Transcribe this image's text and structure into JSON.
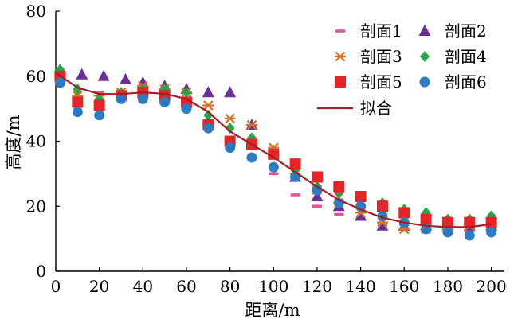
{
  "chart_data": {
    "type": "scatter",
    "title": "",
    "xlabel": "距离/m",
    "ylabel": "高度/m",
    "xlim": [
      0,
      206
    ],
    "ylim": [
      0,
      80
    ],
    "xticks": [
      0,
      20,
      40,
      60,
      80,
      100,
      120,
      140,
      160,
      180,
      200
    ],
    "yticks": [
      0,
      20,
      40,
      60,
      80
    ],
    "grid": false,
    "legend_position": "top-right",
    "series": [
      {
        "name": "剖面1",
        "marker": "dash",
        "color": "#e0559a",
        "points": [
          [
            2,
            61
          ],
          [
            10,
            53
          ],
          [
            20,
            55
          ],
          [
            30,
            54
          ],
          [
            40,
            54
          ],
          [
            50,
            53
          ],
          [
            60,
            52
          ],
          [
            70,
            45
          ],
          [
            80,
            39
          ],
          [
            90,
            38
          ],
          [
            100,
            30
          ],
          [
            110,
            23.5
          ],
          [
            120,
            20
          ],
          [
            130,
            17.5
          ],
          [
            140,
            16
          ],
          [
            150,
            14
          ],
          [
            160,
            13
          ],
          [
            170,
            12.5
          ],
          [
            180,
            12
          ],
          [
            190,
            12.5
          ],
          [
            200,
            12
          ]
        ]
      },
      {
        "name": "剖面2",
        "marker": "triangle",
        "color": "#6a2f98",
        "points": [
          [
            2,
            62
          ],
          [
            12,
            60.5
          ],
          [
            22,
            60
          ],
          [
            32,
            59
          ],
          [
            40,
            58
          ],
          [
            50,
            57
          ],
          [
            60,
            56
          ],
          [
            70,
            55
          ],
          [
            80,
            55
          ],
          [
            90,
            45
          ],
          [
            100,
            37
          ],
          [
            110,
            29
          ],
          [
            120,
            23
          ],
          [
            130,
            20
          ],
          [
            140,
            17
          ],
          [
            150,
            14
          ],
          [
            160,
            14
          ],
          [
            170,
            14
          ],
          [
            180,
            14
          ],
          [
            190,
            14
          ],
          [
            200,
            14
          ]
        ]
      },
      {
        "name": "剖面3",
        "marker": "asterisk",
        "color": "#d2742b",
        "points": [
          [
            2,
            60
          ],
          [
            10,
            54
          ],
          [
            20,
            54
          ],
          [
            30,
            55
          ],
          [
            40,
            57
          ],
          [
            50,
            56
          ],
          [
            60,
            55
          ],
          [
            70,
            51
          ],
          [
            80,
            47
          ],
          [
            90,
            45
          ],
          [
            100,
            38
          ],
          [
            110,
            30
          ],
          [
            120,
            25
          ],
          [
            130,
            21
          ],
          [
            140,
            18
          ],
          [
            150,
            15
          ],
          [
            160,
            13
          ],
          [
            170,
            13
          ],
          [
            180,
            13
          ],
          [
            190,
            14
          ],
          [
            200,
            14
          ]
        ]
      },
      {
        "name": "剖面4",
        "marker": "diamond",
        "color": "#27a54a",
        "points": [
          [
            2,
            62
          ],
          [
            10,
            56
          ],
          [
            20,
            53
          ],
          [
            30,
            55
          ],
          [
            40,
            56
          ],
          [
            50,
            56
          ],
          [
            60,
            55
          ],
          [
            70,
            48
          ],
          [
            80,
            44
          ],
          [
            90,
            41
          ],
          [
            100,
            36
          ],
          [
            110,
            31
          ],
          [
            120,
            26
          ],
          [
            130,
            24
          ],
          [
            140,
            23
          ],
          [
            150,
            21
          ],
          [
            160,
            19
          ],
          [
            170,
            18
          ],
          [
            180,
            16
          ],
          [
            190,
            16
          ],
          [
            200,
            17
          ]
        ]
      },
      {
        "name": "剖面5",
        "marker": "square",
        "color": "#e52427",
        "points": [
          [
            2,
            60
          ],
          [
            10,
            52
          ],
          [
            20,
            51
          ],
          [
            30,
            54
          ],
          [
            40,
            55
          ],
          [
            50,
            54
          ],
          [
            60,
            52
          ],
          [
            70,
            45
          ],
          [
            80,
            40
          ],
          [
            90,
            39
          ],
          [
            100,
            36
          ],
          [
            110,
            33
          ],
          [
            120,
            29
          ],
          [
            130,
            26
          ],
          [
            140,
            23
          ],
          [
            150,
            20
          ],
          [
            160,
            18
          ],
          [
            170,
            16
          ],
          [
            180,
            15
          ],
          [
            190,
            15
          ],
          [
            200,
            15
          ]
        ]
      },
      {
        "name": "剖面6",
        "marker": "circle",
        "color": "#2b7cc4",
        "points": [
          [
            2,
            58
          ],
          [
            10,
            49
          ],
          [
            20,
            48
          ],
          [
            30,
            53
          ],
          [
            40,
            53
          ],
          [
            50,
            52
          ],
          [
            60,
            50
          ],
          [
            70,
            44
          ],
          [
            80,
            38
          ],
          [
            90,
            35
          ],
          [
            100,
            32
          ],
          [
            110,
            29
          ],
          [
            120,
            25
          ],
          [
            130,
            21
          ],
          [
            140,
            20
          ],
          [
            150,
            17
          ],
          [
            160,
            15
          ],
          [
            170,
            13
          ],
          [
            180,
            12
          ],
          [
            190,
            11
          ],
          [
            200,
            12
          ]
        ]
      }
    ],
    "fit": {
      "name": "拟合",
      "color": "#a51c23",
      "points": [
        [
          0,
          61
        ],
        [
          10,
          56.5
        ],
        [
          20,
          54.5
        ],
        [
          30,
          54.5
        ],
        [
          40,
          55
        ],
        [
          50,
          54.6
        ],
        [
          60,
          53
        ],
        [
          70,
          49
        ],
        [
          80,
          43
        ],
        [
          90,
          39
        ],
        [
          100,
          35
        ],
        [
          110,
          30.5
        ],
        [
          120,
          26
        ],
        [
          130,
          22
        ],
        [
          140,
          19
        ],
        [
          150,
          16.5
        ],
        [
          160,
          15
        ],
        [
          170,
          14
        ],
        [
          180,
          13.6
        ],
        [
          190,
          13.6
        ],
        [
          200,
          14.5
        ]
      ]
    }
  }
}
